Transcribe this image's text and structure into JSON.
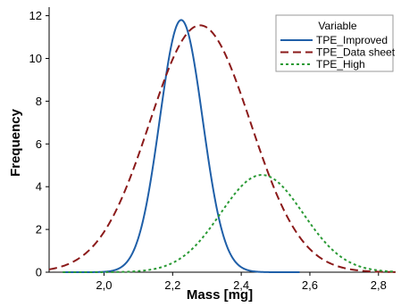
{
  "chart_data": {
    "type": "line",
    "xlabel": "Mass [mg]",
    "ylabel": "Frequency",
    "xlim": [
      1.84,
      2.85
    ],
    "ylim": [
      0,
      12.4
    ],
    "x_ticks": [
      2.0,
      2.2,
      2.4,
      2.6,
      2.8
    ],
    "x_tick_labels": [
      "2,0",
      "2,2",
      "2,4",
      "2,6",
      "2,8"
    ],
    "y_ticks": [
      0,
      2,
      4,
      6,
      8,
      10,
      12
    ],
    "y_tick_labels": [
      "0",
      "2",
      "4",
      "6",
      "8",
      "10",
      "12"
    ],
    "grid": false,
    "legend": {
      "title": "Variable",
      "placement": "top-right"
    },
    "series": [
      {
        "name": "TPE_Improved",
        "color": "#1f5fa8",
        "dash": "solid",
        "mean": 2.225,
        "peak": 11.8,
        "sd": 0.0625,
        "x_range": [
          1.88,
          2.57
        ]
      },
      {
        "name": "TPE_Data sheet",
        "color": "#8b1a1a",
        "dash": "dash",
        "mean": 2.28,
        "peak": 11.55,
        "sd": 0.147,
        "x_range": [
          1.84,
          2.85
        ]
      },
      {
        "name": "TPE_High",
        "color": "#2a9a35",
        "dash": "dot",
        "mean": 2.46,
        "peak": 4.55,
        "sd": 0.12,
        "x_range": [
          1.88,
          2.85
        ]
      }
    ]
  }
}
